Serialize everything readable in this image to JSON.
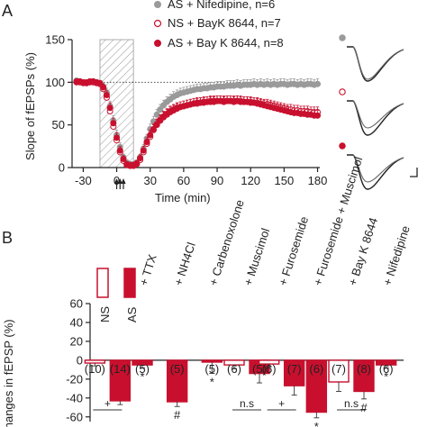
{
  "colors": {
    "axis": "#222222",
    "gray_series": "#9a9a9a",
    "red": "#c8102e",
    "hatch": "#9a9a9a"
  },
  "panel_labels": {
    "a": "A",
    "b": "B"
  },
  "chart_data": [
    {
      "type": "scatter",
      "ylabel": "Slope of fEPSPs (%)",
      "xlabel": "Time (min)",
      "xlim": [
        -40,
        182
      ],
      "ylim": [
        0,
        150
      ],
      "xticks": [
        -30,
        0,
        30,
        60,
        90,
        120,
        150,
        180
      ],
      "yticks": [
        0,
        50,
        100,
        150
      ],
      "grid": false,
      "legend_position": "top-right",
      "reference_line": 100,
      "drug_window": [
        -15,
        15
      ],
      "stim_arrows": [
        0,
        3,
        6
      ],
      "series": [
        {
          "name": "AS + Nifedipine, n=6",
          "style": "gray-filled",
          "x": [
            -36,
            -33,
            -30,
            -27,
            -24,
            -21,
            -18,
            -15,
            -12,
            -9,
            -6,
            -3,
            0,
            3,
            6,
            9,
            12,
            15,
            18,
            21,
            24,
            27,
            30,
            33,
            36,
            39,
            42,
            45,
            48,
            51,
            54,
            57,
            60,
            63,
            66,
            69,
            72,
            75,
            78,
            81,
            84,
            87,
            90,
            93,
            96,
            99,
            102,
            105,
            108,
            111,
            114,
            117,
            120,
            123,
            126,
            129,
            132,
            135,
            138,
            141,
            144,
            147,
            150,
            153,
            156,
            159,
            162,
            165,
            168,
            171,
            174,
            177,
            180
          ],
          "y": [
            102,
            101,
            100,
            99,
            101,
            100,
            100,
            99,
            95,
            88,
            72,
            55,
            38,
            24,
            12,
            6,
            4,
            4,
            6,
            12,
            22,
            34,
            45,
            54,
            62,
            68,
            73,
            77,
            80,
            83,
            85,
            87,
            88,
            89,
            90,
            91,
            92,
            92,
            93,
            93,
            94,
            94,
            95,
            95,
            95,
            96,
            96,
            96,
            97,
            96,
            97,
            97,
            97,
            98,
            97,
            98,
            97,
            98,
            97,
            98,
            97,
            98,
            98,
            97,
            98,
            98,
            97,
            98,
            97,
            98,
            98,
            97,
            98
          ],
          "err": [
            3,
            3,
            3,
            3,
            3,
            3,
            3,
            3,
            4,
            5,
            6,
            6,
            6,
            5,
            4,
            3,
            3,
            3,
            3,
            4,
            5,
            5,
            6,
            6,
            6,
            6,
            6,
            6,
            6,
            6,
            6,
            6,
            6,
            6,
            6,
            6,
            6,
            6,
            6,
            6,
            6,
            6,
            6,
            6,
            6,
            6,
            6,
            6,
            6,
            6,
            6,
            6,
            6,
            6,
            6,
            6,
            6,
            6,
            6,
            6,
            6,
            6,
            6,
            6,
            6,
            6,
            6,
            6,
            6,
            6,
            6,
            6,
            6
          ]
        },
        {
          "name": "NS + BayK 8644, n=7",
          "style": "red-open",
          "x": [
            -36,
            -33,
            -30,
            -27,
            -24,
            -21,
            -18,
            -15,
            -12,
            -9,
            -6,
            -3,
            0,
            3,
            6,
            9,
            12,
            15,
            18,
            21,
            24,
            27,
            30,
            33,
            36,
            39,
            42,
            45,
            48,
            51,
            54,
            57,
            60,
            63,
            66,
            69,
            72,
            75,
            78,
            81,
            84,
            87,
            90,
            93,
            96,
            99,
            102,
            105,
            108,
            111,
            114,
            117,
            120,
            123,
            126,
            129,
            132,
            135,
            138,
            141,
            144,
            147,
            150,
            153,
            156,
            159,
            162,
            165,
            168,
            171,
            174,
            177,
            180
          ],
          "y": [
            101,
            100,
            99,
            100,
            101,
            100,
            99,
            98,
            92,
            82,
            66,
            48,
            32,
            18,
            8,
            3,
            2,
            2,
            4,
            9,
            18,
            28,
            36,
            44,
            50,
            55,
            59,
            62,
            65,
            67,
            69,
            71,
            72,
            73,
            74,
            75,
            75,
            76,
            76,
            77,
            77,
            77,
            78,
            78,
            77,
            78,
            78,
            77,
            78,
            78,
            77,
            77,
            77,
            76,
            76,
            75,
            74,
            74,
            73,
            72,
            71,
            70,
            69,
            68,
            68,
            67,
            67,
            66,
            66,
            66,
            65,
            65,
            65
          ],
          "err": [
            3,
            3,
            3,
            3,
            3,
            3,
            3,
            3,
            4,
            5,
            6,
            6,
            6,
            5,
            4,
            3,
            3,
            3,
            3,
            4,
            5,
            5,
            6,
            6,
            6,
            6,
            6,
            6,
            6,
            6,
            6,
            6,
            6,
            6,
            6,
            6,
            6,
            6,
            6,
            6,
            6,
            6,
            6,
            6,
            6,
            6,
            6,
            6,
            6,
            6,
            6,
            6,
            6,
            6,
            6,
            6,
            6,
            6,
            6,
            6,
            6,
            6,
            6,
            6,
            6,
            6,
            6,
            6,
            6,
            6,
            6,
            6,
            6
          ]
        },
        {
          "name": "AS + Bay K 8644, n=8",
          "style": "red-filled",
          "x": [
            -36,
            -33,
            -30,
            -27,
            -24,
            -21,
            -18,
            -15,
            -12,
            -9,
            -6,
            -3,
            0,
            3,
            6,
            9,
            12,
            15,
            18,
            21,
            24,
            27,
            30,
            33,
            36,
            39,
            42,
            45,
            48,
            51,
            54,
            57,
            60,
            63,
            66,
            69,
            72,
            75,
            78,
            81,
            84,
            87,
            90,
            93,
            96,
            99,
            102,
            105,
            108,
            111,
            114,
            117,
            120,
            123,
            126,
            129,
            132,
            135,
            138,
            141,
            144,
            147,
            150,
            153,
            156,
            159,
            162,
            165,
            168,
            171,
            174,
            177,
            180
          ],
          "y": [
            100,
            101,
            100,
            99,
            100,
            101,
            100,
            99,
            94,
            85,
            70,
            52,
            35,
            20,
            10,
            4,
            3,
            3,
            5,
            11,
            20,
            30,
            38,
            45,
            51,
            56,
            60,
            63,
            66,
            68,
            70,
            71,
            72,
            73,
            74,
            75,
            76,
            76,
            77,
            77,
            78,
            78,
            78,
            78,
            78,
            78,
            78,
            78,
            78,
            77,
            77,
            77,
            76,
            76,
            75,
            74,
            73,
            72,
            71,
            70,
            69,
            68,
            67,
            66,
            65,
            64,
            64,
            63,
            63,
            62,
            62,
            61,
            61
          ],
          "err": [
            3,
            3,
            3,
            3,
            3,
            3,
            3,
            3,
            4,
            5,
            6,
            6,
            6,
            5,
            4,
            3,
            3,
            3,
            3,
            4,
            5,
            5,
            6,
            6,
            6,
            6,
            6,
            6,
            6,
            6,
            6,
            6,
            6,
            6,
            6,
            6,
            6,
            6,
            6,
            6,
            6,
            6,
            6,
            6,
            6,
            6,
            6,
            6,
            6,
            6,
            6,
            6,
            6,
            6,
            6,
            6,
            6,
            6,
            6,
            6,
            6,
            6,
            6,
            6,
            6,
            6,
            6,
            6,
            6,
            6,
            6,
            6,
            6
          ]
        }
      ],
      "sample_traces": [
        "gray-filled",
        "red-open",
        "red-filled"
      ]
    },
    {
      "type": "bar",
      "ylabel": "Changes in fEPSP (%)",
      "ylim": [
        -65,
        60
      ],
      "yticks": [
        60,
        40,
        20,
        0,
        -20,
        -40,
        -60
      ],
      "legend": {
        "open_label": "NS",
        "filled_label": "AS"
      },
      "groups": [
        {
          "treatment": "",
          "ns": {
            "value": -3,
            "err": 3,
            "n": "(10)"
          },
          "as": {
            "value": -43,
            "err": 4,
            "n": "(14)"
          },
          "sig_label": "+",
          "group_mark": ""
        },
        {
          "treatment": "+ TTX",
          "ns": null,
          "as": {
            "value": -5,
            "err": 3,
            "n": "(5)"
          },
          "sig_label": "",
          "group_mark": "*"
        },
        {
          "treatment": "+ NH4Cl",
          "ns": null,
          "as": {
            "value": -44,
            "err": 5,
            "n": "(5)"
          },
          "sig_label": "",
          "group_mark": "#"
        },
        {
          "treatment": "+ Carbenoxolone",
          "ns": null,
          "as": {
            "value": -2,
            "err": 12,
            "n": "(5)"
          },
          "sig_label": "",
          "group_mark": "*"
        },
        {
          "treatment": "+ Muscimol",
          "ns": {
            "value": -5,
            "err": 4,
            "n": "(6)"
          },
          "as": {
            "value": -14,
            "err": 10,
            "n": "(5)"
          },
          "sig_label": "n.s",
          "group_mark": ""
        },
        {
          "treatment": "+ Furosemide",
          "ns": {
            "value": -4,
            "err": 3,
            "n": "(6)"
          },
          "as": {
            "value": -27,
            "err": 10,
            "n": "(7)"
          },
          "sig_label": "+",
          "group_mark": ""
        },
        {
          "treatment": "+ Furosemide + Muscimol",
          "ns": null,
          "as": {
            "value": -55,
            "err": 6,
            "n": "(6)"
          },
          "sig_label": "",
          "group_mark": "*"
        },
        {
          "treatment": "+ Bay K 8644",
          "ns": {
            "value": -23,
            "err": 10,
            "n": "(7)"
          },
          "as": {
            "value": -33,
            "err": 8,
            "n": "(8)"
          },
          "sig_label": "n.s",
          "group_mark": "#"
        },
        {
          "treatment": "+ Nifedipine",
          "ns": null,
          "as": {
            "value": -5,
            "err": 3,
            "n": "(6)"
          },
          "sig_label": "",
          "group_mark": "*"
        }
      ]
    }
  ]
}
